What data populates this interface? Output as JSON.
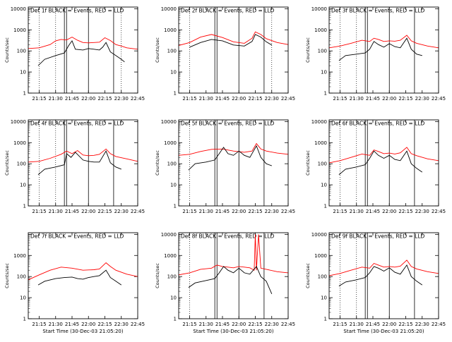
{
  "colors": {
    "background": "#ffffff",
    "axes": "#000000",
    "events": "#000000",
    "lld": "#ff0000"
  },
  "chart_data": [
    {
      "type": "line",
      "title": "Det 1f BLACK = Events, RED = LLD",
      "xlabel": "",
      "ylabel": "Counts/sec",
      "y_scale": "log",
      "ylim": [
        1,
        12000
      ],
      "xlim": [
        "21:05",
        "22:45"
      ],
      "x_ticks": [
        "21:15",
        "21:30",
        "21:45",
        "22:00",
        "22:15",
        "22:30",
        "22:45"
      ],
      "y_ticks": [
        "1",
        "10",
        "100",
        "1000",
        "10000"
      ],
      "dotted_lines": [
        "21:15",
        "21:30",
        "22:30"
      ],
      "solid_lines": [
        "21:38",
        "21:40",
        "22:00",
        "22:23"
      ],
      "series": [
        {
          "color": "red",
          "x": [
            "21:05",
            "21:15",
            "21:25",
            "21:30",
            "21:35",
            "21:40",
            "21:45",
            "21:50",
            "21:55",
            "22:00",
            "22:05",
            "22:10",
            "22:15",
            "22:20",
            "22:25",
            "22:30",
            "22:35",
            "22:45"
          ],
          "y": [
            130,
            140,
            200,
            300,
            350,
            330,
            450,
            320,
            250,
            240,
            250,
            260,
            420,
            310,
            200,
            170,
            140,
            120
          ]
        },
        {
          "color": "black",
          "x": [
            "21:14",
            "21:20",
            "21:30",
            "21:38",
            "21:42",
            "21:45",
            "21:48",
            "21:55",
            "22:00",
            "22:05",
            "22:10",
            "22:13",
            "22:16",
            "22:20",
            "22:25",
            "22:30",
            "22:33"
          ],
          "y": [
            20,
            40,
            60,
            80,
            180,
            300,
            120,
            110,
            130,
            120,
            110,
            150,
            250,
            90,
            60,
            40,
            30
          ]
        }
      ]
    },
    {
      "type": "line",
      "title": "Det 2f BLACK = Events, RED = LLD",
      "xlabel": "",
      "ylabel": "Counts/sec",
      "y_scale": "log",
      "ylim": [
        1,
        12000
      ],
      "xlim": [
        "21:05",
        "22:45"
      ],
      "x_ticks": [
        "21:15",
        "21:30",
        "21:45",
        "22:00",
        "22:15",
        "22:30",
        "22:45"
      ],
      "y_ticks": [
        "1",
        "10",
        "100",
        "1000",
        "10000"
      ],
      "dotted_lines": [
        "21:15",
        "22:30"
      ],
      "solid_lines": [
        "21:38",
        "21:40",
        "22:00",
        "22:23"
      ],
      "series": [
        {
          "color": "red",
          "x": [
            "21:05",
            "21:15",
            "21:25",
            "21:35",
            "21:45",
            "21:55",
            "22:05",
            "22:12",
            "22:15",
            "22:20",
            "22:25",
            "22:35",
            "22:45"
          ],
          "y": [
            180,
            250,
            450,
            600,
            430,
            270,
            230,
            400,
            800,
            600,
            380,
            250,
            200
          ]
        },
        {
          "color": "black",
          "x": [
            "21:15",
            "21:25",
            "21:35",
            "21:45",
            "21:55",
            "22:05",
            "22:12",
            "22:15",
            "22:20",
            "22:25",
            "22:30"
          ],
          "y": [
            150,
            250,
            350,
            300,
            190,
            170,
            280,
            600,
            450,
            270,
            190
          ]
        }
      ]
    },
    {
      "type": "line",
      "title": "Det 3f BLACK = Events, RED = LLD",
      "xlabel": "",
      "ylabel": "Counts/sec",
      "y_scale": "log",
      "ylim": [
        1,
        12000
      ],
      "xlim": [
        "21:05",
        "22:45"
      ],
      "x_ticks": [
        "21:15",
        "21:30",
        "21:45",
        "22:00",
        "22:15",
        "22:30",
        "22:45"
      ],
      "y_ticks": [
        "1",
        "10",
        "100",
        "1000",
        "10000"
      ],
      "dotted_lines": [
        "21:15",
        "21:30"
      ],
      "solid_lines": [
        "21:38",
        "21:40",
        "22:00",
        "22:23"
      ],
      "series": [
        {
          "color": "red",
          "x": [
            "21:05",
            "21:15",
            "21:25",
            "21:35",
            "21:42",
            "21:46",
            "21:50",
            "21:55",
            "22:00",
            "22:05",
            "22:10",
            "22:16",
            "22:20",
            "22:25",
            "22:35",
            "22:45"
          ],
          "y": [
            140,
            170,
            230,
            320,
            280,
            400,
            350,
            280,
            300,
            290,
            320,
            550,
            300,
            230,
            170,
            140
          ]
        },
        {
          "color": "black",
          "x": [
            "21:14",
            "21:20",
            "21:30",
            "21:38",
            "21:42",
            "21:46",
            "21:50",
            "21:55",
            "22:00",
            "22:05",
            "22:10",
            "22:16",
            "22:20",
            "22:25",
            "22:30"
          ],
          "y": [
            35,
            60,
            70,
            80,
            120,
            280,
            200,
            150,
            220,
            160,
            140,
            400,
            120,
            70,
            60
          ]
        }
      ]
    },
    {
      "type": "line",
      "title": "Det 4f BLACK = Events, RED = LLD",
      "xlabel": "",
      "ylabel": "Counts/sec",
      "y_scale": "log",
      "ylim": [
        1,
        12000
      ],
      "xlim": [
        "21:05",
        "22:45"
      ],
      "x_ticks": [
        "21:15",
        "21:30",
        "21:45",
        "22:00",
        "22:15",
        "22:30",
        "22:45"
      ],
      "y_ticks": [
        "1",
        "10",
        "100",
        "1000",
        "10000"
      ],
      "dotted_lines": [
        "21:15",
        "21:30"
      ],
      "solid_lines": [
        "21:38",
        "21:40",
        "22:00",
        "22:23"
      ],
      "series": [
        {
          "color": "red",
          "x": [
            "21:05",
            "21:15",
            "21:25",
            "21:35",
            "21:40",
            "21:45",
            "21:50",
            "21:55",
            "22:00",
            "22:05",
            "22:10",
            "22:16",
            "22:20",
            "22:25",
            "22:35",
            "22:45"
          ],
          "y": [
            120,
            130,
            180,
            280,
            400,
            300,
            420,
            260,
            240,
            250,
            280,
            500,
            300,
            220,
            170,
            130
          ]
        },
        {
          "color": "black",
          "x": [
            "21:14",
            "21:20",
            "21:30",
            "21:38",
            "21:40",
            "21:44",
            "21:48",
            "21:55",
            "22:00",
            "22:05",
            "22:10",
            "22:16",
            "22:20",
            "22:25",
            "22:30"
          ],
          "y": [
            30,
            55,
            70,
            90,
            300,
            200,
            350,
            150,
            130,
            120,
            120,
            400,
            110,
            70,
            55
          ]
        }
      ]
    },
    {
      "type": "line",
      "title": "Det 5f BLACK = Events, RED = LLD",
      "xlabel": "",
      "ylabel": "Counts/sec",
      "y_scale": "log",
      "ylim": [
        1,
        12000
      ],
      "xlim": [
        "21:05",
        "22:45"
      ],
      "x_ticks": [
        "21:15",
        "21:30",
        "21:45",
        "22:00",
        "22:15",
        "22:30",
        "22:45"
      ],
      "y_ticks": [
        "1",
        "10",
        "100",
        "1000",
        "10000"
      ],
      "dotted_lines": [
        "21:15"
      ],
      "solid_lines": [
        "21:38",
        "21:40",
        "22:00",
        "22:23"
      ],
      "series": [
        {
          "color": "red",
          "x": [
            "21:05",
            "21:15",
            "21:25",
            "21:35",
            "21:45",
            "21:55",
            "22:05",
            "22:12",
            "22:16",
            "22:20",
            "22:25",
            "22:35",
            "22:45"
          ],
          "y": [
            250,
            280,
            380,
            480,
            500,
            400,
            350,
            400,
            900,
            500,
            400,
            320,
            280
          ]
        },
        {
          "color": "black",
          "x": [
            "21:14",
            "21:20",
            "21:30",
            "21:38",
            "21:42",
            "21:46",
            "21:50",
            "21:55",
            "22:00",
            "22:05",
            "22:10",
            "22:16",
            "22:20",
            "22:25",
            "22:30"
          ],
          "y": [
            50,
            100,
            120,
            150,
            300,
            600,
            300,
            250,
            400,
            250,
            200,
            700,
            200,
            100,
            80
          ]
        }
      ]
    },
    {
      "type": "line",
      "title": "Det 6f BLACK = Events, RED = LLD",
      "xlabel": "",
      "ylabel": "Counts/sec",
      "y_scale": "log",
      "ylim": [
        1,
        12000
      ],
      "xlim": [
        "21:05",
        "22:45"
      ],
      "x_ticks": [
        "21:15",
        "21:30",
        "21:45",
        "22:00",
        "22:15",
        "22:30",
        "22:45"
      ],
      "y_ticks": [
        "1",
        "10",
        "100",
        "1000",
        "10000"
      ],
      "dotted_lines": [
        "21:15",
        "21:30"
      ],
      "solid_lines": [
        "21:38",
        "21:40",
        "22:00",
        "22:23"
      ],
      "series": [
        {
          "color": "red",
          "x": [
            "21:05",
            "21:15",
            "21:25",
            "21:35",
            "21:42",
            "21:46",
            "21:50",
            "21:55",
            "22:00",
            "22:05",
            "22:10",
            "22:16",
            "22:20",
            "22:25",
            "22:35",
            "22:45"
          ],
          "y": [
            110,
            140,
            200,
            290,
            250,
            450,
            380,
            300,
            320,
            290,
            330,
            600,
            300,
            240,
            170,
            140
          ]
        },
        {
          "color": "black",
          "x": [
            "21:14",
            "21:20",
            "21:30",
            "21:38",
            "21:42",
            "21:46",
            "21:50",
            "21:55",
            "22:00",
            "22:05",
            "22:10",
            "22:16",
            "22:20",
            "22:25",
            "22:30"
          ],
          "y": [
            30,
            55,
            70,
            90,
            180,
            400,
            250,
            180,
            250,
            160,
            140,
            400,
            100,
            60,
            40
          ]
        }
      ]
    },
    {
      "type": "line",
      "title": "Det 7f BLACK = Events, RED = LLD",
      "xlabel": "Start Time (30-Dec-03 21:05:20)",
      "ylabel": "Counts/sec",
      "y_scale": "log",
      "ylim": [
        1,
        12000
      ],
      "xlim": [
        "21:05",
        "22:45"
      ],
      "x_ticks": [
        "21:15",
        "21:30",
        "21:45",
        "22:00",
        "22:15",
        "22:30",
        "22:45"
      ],
      "y_ticks": [
        "1",
        "10",
        "100",
        "1000"
      ],
      "dotted_lines": [],
      "solid_lines": [],
      "series": [
        {
          "color": "red",
          "x": [
            "21:05",
            "21:15",
            "21:25",
            "21:35",
            "21:45",
            "21:55",
            "22:05",
            "22:10",
            "22:16",
            "22:20",
            "22:25",
            "22:35",
            "22:45"
          ],
          "y": [
            70,
            120,
            200,
            280,
            250,
            200,
            210,
            230,
            450,
            300,
            200,
            130,
            100
          ]
        },
        {
          "color": "black",
          "x": [
            "21:14",
            "21:20",
            "21:30",
            "21:38",
            "21:45",
            "21:50",
            "21:55",
            "22:00",
            "22:05",
            "22:10",
            "22:16",
            "22:20",
            "22:25",
            "22:30"
          ],
          "y": [
            40,
            60,
            80,
            90,
            95,
            80,
            75,
            90,
            100,
            110,
            200,
            90,
            60,
            40
          ]
        }
      ]
    },
    {
      "type": "line",
      "title": "Det 8f BLACK = Events, RED = LLD",
      "xlabel": "Start Time (30-Dec-03 21:05:20)",
      "ylabel": "Counts/sec",
      "y_scale": "log",
      "ylim": [
        1,
        12000
      ],
      "xlim": [
        "21:05",
        "22:45"
      ],
      "x_ticks": [
        "21:15",
        "21:30",
        "21:45",
        "22:00",
        "22:15",
        "22:30",
        "22:45"
      ],
      "y_ticks": [
        "1",
        "10",
        "100",
        "1000",
        "10000"
      ],
      "dotted_lines": [
        "21:15"
      ],
      "solid_lines": [
        "21:38",
        "21:40",
        "22:00",
        "22:23"
      ],
      "series": [
        {
          "color": "red",
          "x": [
            "21:05",
            "21:15",
            "21:25",
            "21:35",
            "21:40",
            "21:45",
            "21:50",
            "21:55",
            "22:00",
            "22:05",
            "22:10",
            "22:14",
            "22:15",
            "22:16",
            "22:18",
            "22:20",
            "22:25",
            "22:35",
            "22:45"
          ],
          "y": [
            120,
            150,
            220,
            250,
            350,
            300,
            280,
            260,
            300,
            280,
            260,
            200,
            10000,
            200,
            10000,
            250,
            220,
            170,
            150
          ]
        },
        {
          "color": "black",
          "x": [
            "21:14",
            "21:20",
            "21:30",
            "21:38",
            "21:42",
            "21:46",
            "21:50",
            "21:55",
            "22:00",
            "22:05",
            "22:10",
            "22:16",
            "22:20",
            "22:25",
            "22:30"
          ],
          "y": [
            30,
            50,
            65,
            80,
            150,
            300,
            200,
            150,
            250,
            150,
            130,
            300,
            100,
            60,
            15
          ]
        }
      ]
    },
    {
      "type": "line",
      "title": "Det 9f BLACK = Events, RED = LLD",
      "xlabel": "Start Time (30-Dec-03 21:05:20)",
      "ylabel": "Counts/sec",
      "y_scale": "log",
      "ylim": [
        1,
        12000
      ],
      "xlim": [
        "21:05",
        "22:45"
      ],
      "x_ticks": [
        "21:15",
        "21:30",
        "21:45",
        "22:00",
        "22:15",
        "22:30",
        "22:45"
      ],
      "y_ticks": [
        "1",
        "10",
        "100",
        "1000",
        "10000"
      ],
      "dotted_lines": [
        "21:15",
        "21:30"
      ],
      "solid_lines": [
        "21:38",
        "21:40",
        "22:00",
        "22:23"
      ],
      "series": [
        {
          "color": "red",
          "x": [
            "21:05",
            "21:15",
            "21:25",
            "21:35",
            "21:42",
            "21:46",
            "21:50",
            "21:55",
            "22:00",
            "22:05",
            "22:10",
            "22:16",
            "22:20",
            "22:25",
            "22:35",
            "22:45"
          ],
          "y": [
            110,
            140,
            200,
            280,
            250,
            420,
            350,
            280,
            300,
            280,
            310,
            600,
            300,
            230,
            170,
            140
          ]
        },
        {
          "color": "black",
          "x": [
            "21:14",
            "21:20",
            "21:30",
            "21:38",
            "21:42",
            "21:46",
            "21:50",
            "21:55",
            "22:00",
            "22:05",
            "22:10",
            "22:16",
            "22:20",
            "22:25",
            "22:30"
          ],
          "y": [
            35,
            55,
            70,
            90,
            150,
            300,
            250,
            180,
            260,
            160,
            130,
            350,
            100,
            60,
            40
          ]
        }
      ]
    }
  ]
}
